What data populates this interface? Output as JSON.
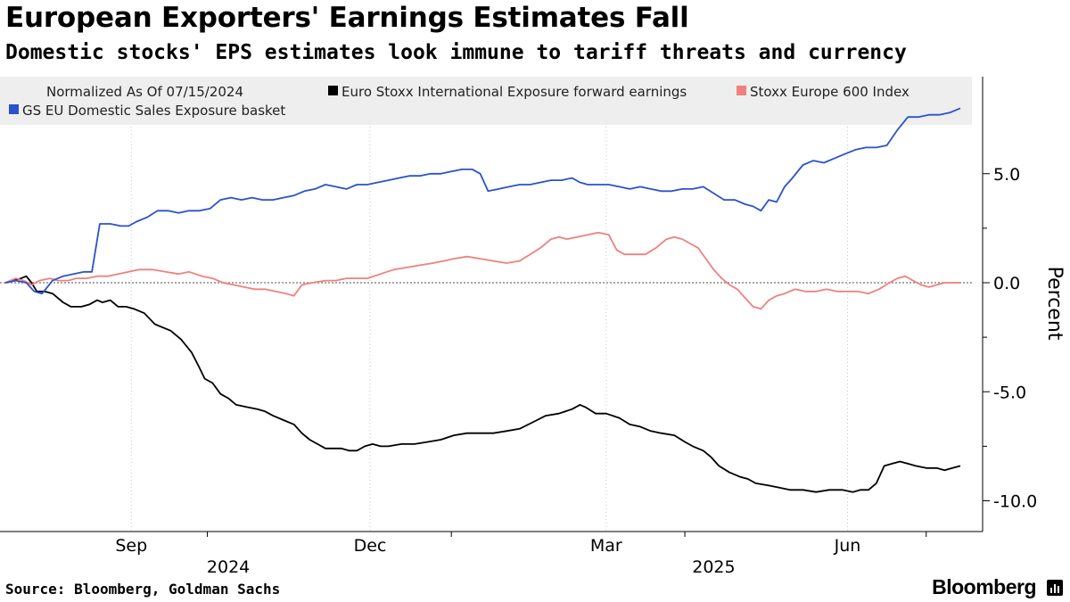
{
  "header": {
    "title": "European Exporters' Earnings Estimates Fall",
    "subtitle": "Domestic stocks' EPS estimates look immune to tariff threats and currency"
  },
  "footer": {
    "source": "Source: Bloomberg, Goldman Sachs",
    "brand": "Bloomberg"
  },
  "chart_data": {
    "type": "line",
    "title": "European Exporters' Earnings Estimates Fall",
    "subtitle": "Domestic stocks' EPS estimates look immune to tariff threats and currency",
    "note": "Normalized As Of 07/15/2024",
    "ylabel": "Percent",
    "xlabel": "",
    "ylim": [
      -11.2,
      9.5
    ],
    "xlim": [
      0,
      364
    ],
    "yticks": [
      5.0,
      0.0,
      -5.0,
      -10.0
    ],
    "ytick_labels": [
      "5.0",
      "0.0",
      "-5.0",
      "-10.0"
    ],
    "minor_yticks": [
      2.5,
      -2.5,
      -7.5
    ],
    "zero_line": true,
    "legend_position": "top",
    "x_month_ticks": [
      {
        "day": 48,
        "label": "Sep"
      },
      {
        "day": 139,
        "label": "Dec"
      },
      {
        "day": 229,
        "label": "Mar"
      },
      {
        "day": 321,
        "label": "Jun"
      }
    ],
    "x_year_labels": [
      {
        "day": 85,
        "label": "2024"
      },
      {
        "day": 270,
        "label": "2025"
      }
    ],
    "x_divider_days": [
      77,
      170,
      259,
      351
    ],
    "x_unit": "days since 07/15/2024",
    "series": [
      {
        "name": "Euro Stoxx International Exposure forward earnings",
        "color": "#000000",
        "points": [
          [
            0,
            0
          ],
          [
            3,
            0.1
          ],
          [
            6,
            0.2
          ],
          [
            8,
            0.3
          ],
          [
            10,
            0
          ],
          [
            12,
            -0.4
          ],
          [
            15,
            -0.4
          ],
          [
            18,
            -0.5
          ],
          [
            22,
            -0.9
          ],
          [
            25,
            -1.1
          ],
          [
            29,
            -1.1
          ],
          [
            32,
            -1.0
          ],
          [
            35,
            -0.8
          ],
          [
            37,
            -0.9
          ],
          [
            40,
            -0.8
          ],
          [
            43,
            -1.1
          ],
          [
            46,
            -1.1
          ],
          [
            49,
            -1.2
          ],
          [
            53,
            -1.4
          ],
          [
            57,
            -1.9
          ],
          [
            63,
            -2.2
          ],
          [
            67,
            -2.6
          ],
          [
            71,
            -3.2
          ],
          [
            74,
            -3.9
          ],
          [
            76,
            -4.4
          ],
          [
            79,
            -4.6
          ],
          [
            82,
            -5.1
          ],
          [
            85,
            -5.3
          ],
          [
            88,
            -5.6
          ],
          [
            92,
            -5.7
          ],
          [
            96,
            -5.8
          ],
          [
            99,
            -5.9
          ],
          [
            102,
            -6.1
          ],
          [
            106,
            -6.3
          ],
          [
            110,
            -6.5
          ],
          [
            113,
            -6.9
          ],
          [
            116,
            -7.2
          ],
          [
            119,
            -7.4
          ],
          [
            122,
            -7.6
          ],
          [
            125,
            -7.6
          ],
          [
            128,
            -7.6
          ],
          [
            131,
            -7.7
          ],
          [
            134,
            -7.7
          ],
          [
            137,
            -7.5
          ],
          [
            140,
            -7.4
          ],
          [
            143,
            -7.5
          ],
          [
            146,
            -7.5
          ],
          [
            151,
            -7.4
          ],
          [
            156,
            -7.4
          ],
          [
            161,
            -7.3
          ],
          [
            166,
            -7.2
          ],
          [
            171,
            -7.0
          ],
          [
            176,
            -6.9
          ],
          [
            181,
            -6.9
          ],
          [
            186,
            -6.9
          ],
          [
            191,
            -6.8
          ],
          [
            196,
            -6.7
          ],
          [
            201,
            -6.4
          ],
          [
            206,
            -6.1
          ],
          [
            211,
            -6.0
          ],
          [
            216,
            -5.8
          ],
          [
            219,
            -5.6
          ],
          [
            221,
            -5.7
          ],
          [
            225,
            -6.0
          ],
          [
            229,
            -6.0
          ],
          [
            234,
            -6.2
          ],
          [
            238,
            -6.5
          ],
          [
            242,
            -6.6
          ],
          [
            246,
            -6.8
          ],
          [
            250,
            -6.9
          ],
          [
            255,
            -7.0
          ],
          [
            259,
            -7.3
          ],
          [
            262,
            -7.5
          ],
          [
            266,
            -7.7
          ],
          [
            269,
            -8.0
          ],
          [
            272,
            -8.4
          ],
          [
            276,
            -8.7
          ],
          [
            280,
            -8.9
          ],
          [
            283,
            -9.0
          ],
          [
            286,
            -9.2
          ],
          [
            291,
            -9.3
          ],
          [
            295,
            -9.4
          ],
          [
            299,
            -9.5
          ],
          [
            304,
            -9.5
          ],
          [
            309,
            -9.6
          ],
          [
            314,
            -9.5
          ],
          [
            319,
            -9.5
          ],
          [
            323,
            -9.6
          ],
          [
            326,
            -9.5
          ],
          [
            329,
            -9.5
          ],
          [
            332,
            -9.2
          ],
          [
            335,
            -8.4
          ],
          [
            338,
            -8.3
          ],
          [
            341,
            -8.2
          ],
          [
            344,
            -8.3
          ],
          [
            347,
            -8.4
          ],
          [
            351,
            -8.5
          ],
          [
            355,
            -8.5
          ],
          [
            358,
            -8.6
          ],
          [
            361,
            -8.5
          ],
          [
            364,
            -8.4
          ]
        ]
      },
      {
        "name": "Stoxx Europe 600 Index",
        "color": "#F08080",
        "points": [
          [
            0,
            0
          ],
          [
            4,
            0.2
          ],
          [
            7,
            0.1
          ],
          [
            10,
            -0.1
          ],
          [
            13,
            0.1
          ],
          [
            17,
            0.2
          ],
          [
            20,
            0.1
          ],
          [
            24,
            0.1
          ],
          [
            27,
            0.2
          ],
          [
            31,
            0.2
          ],
          [
            35,
            0.3
          ],
          [
            39,
            0.3
          ],
          [
            43,
            0.4
          ],
          [
            47,
            0.5
          ],
          [
            51,
            0.6
          ],
          [
            56,
            0.6
          ],
          [
            61,
            0.5
          ],
          [
            66,
            0.4
          ],
          [
            70,
            0.5
          ],
          [
            75,
            0.3
          ],
          [
            79,
            0.2
          ],
          [
            83,
            0.0
          ],
          [
            87,
            -0.1
          ],
          [
            91,
            -0.2
          ],
          [
            95,
            -0.3
          ],
          [
            99,
            -0.3
          ],
          [
            103,
            -0.4
          ],
          [
            107,
            -0.5
          ],
          [
            110,
            -0.6
          ],
          [
            113,
            -0.1
          ],
          [
            117,
            0.0
          ],
          [
            122,
            0.1
          ],
          [
            126,
            0.1
          ],
          [
            130,
            0.2
          ],
          [
            134,
            0.2
          ],
          [
            138,
            0.2
          ],
          [
            143,
            0.4
          ],
          [
            148,
            0.6
          ],
          [
            153,
            0.7
          ],
          [
            158,
            0.8
          ],
          [
            163,
            0.9
          ],
          [
            167,
            1.0
          ],
          [
            171,
            1.1
          ],
          [
            176,
            1.2
          ],
          [
            181,
            1.1
          ],
          [
            186,
            1.0
          ],
          [
            191,
            0.9
          ],
          [
            196,
            1.0
          ],
          [
            200,
            1.3
          ],
          [
            204,
            1.6
          ],
          [
            208,
            2.0
          ],
          [
            211,
            2.1
          ],
          [
            214,
            2.0
          ],
          [
            218,
            2.1
          ],
          [
            222,
            2.2
          ],
          [
            226,
            2.3
          ],
          [
            230,
            2.2
          ],
          [
            233,
            1.5
          ],
          [
            236,
            1.3
          ],
          [
            240,
            1.3
          ],
          [
            244,
            1.3
          ],
          [
            248,
            1.6
          ],
          [
            252,
            2.0
          ],
          [
            255,
            2.1
          ],
          [
            258,
            2.0
          ],
          [
            261,
            1.8
          ],
          [
            264,
            1.6
          ],
          [
            267,
            1.1
          ],
          [
            270,
            0.6
          ],
          [
            273,
            0.2
          ],
          [
            276,
            -0.1
          ],
          [
            279,
            -0.3
          ],
          [
            282,
            -0.7
          ],
          [
            285,
            -1.1
          ],
          [
            288,
            -1.2
          ],
          [
            291,
            -0.8
          ],
          [
            294,
            -0.6
          ],
          [
            297,
            -0.5
          ],
          [
            301,
            -0.3
          ],
          [
            305,
            -0.4
          ],
          [
            309,
            -0.4
          ],
          [
            313,
            -0.3
          ],
          [
            317,
            -0.4
          ],
          [
            321,
            -0.4
          ],
          [
            325,
            -0.4
          ],
          [
            329,
            -0.5
          ],
          [
            333,
            -0.3
          ],
          [
            337,
            0.0
          ],
          [
            340,
            0.2
          ],
          [
            343,
            0.3
          ],
          [
            346,
            0.1
          ],
          [
            349,
            -0.1
          ],
          [
            352,
            -0.2
          ],
          [
            355,
            -0.1
          ],
          [
            358,
            0.0
          ],
          [
            361,
            0.0
          ],
          [
            364,
            0.0
          ]
        ]
      },
      {
        "name": "GS EU Domestic Sales Exposure basket",
        "color": "#2A52CC",
        "points": [
          [
            0,
            0
          ],
          [
            4,
            0.1
          ],
          [
            8,
            0
          ],
          [
            11,
            -0.4
          ],
          [
            14,
            -0.5
          ],
          [
            18,
            0.1
          ],
          [
            22,
            0.3
          ],
          [
            26,
            0.4
          ],
          [
            30,
            0.5
          ],
          [
            33,
            0.5
          ],
          [
            36,
            2.7
          ],
          [
            40,
            2.7
          ],
          [
            44,
            2.6
          ],
          [
            47,
            2.6
          ],
          [
            50,
            2.8
          ],
          [
            54,
            3.0
          ],
          [
            58,
            3.3
          ],
          [
            62,
            3.3
          ],
          [
            66,
            3.2
          ],
          [
            70,
            3.3
          ],
          [
            74,
            3.3
          ],
          [
            78,
            3.4
          ],
          [
            82,
            3.8
          ],
          [
            86,
            3.9
          ],
          [
            90,
            3.8
          ],
          [
            94,
            3.9
          ],
          [
            98,
            3.8
          ],
          [
            102,
            3.8
          ],
          [
            106,
            3.9
          ],
          [
            110,
            4.0
          ],
          [
            114,
            4.2
          ],
          [
            118,
            4.3
          ],
          [
            122,
            4.5
          ],
          [
            126,
            4.4
          ],
          [
            130,
            4.3
          ],
          [
            134,
            4.5
          ],
          [
            138,
            4.5
          ],
          [
            142,
            4.6
          ],
          [
            146,
            4.7
          ],
          [
            150,
            4.8
          ],
          [
            154,
            4.9
          ],
          [
            158,
            4.9
          ],
          [
            162,
            5.0
          ],
          [
            166,
            5.0
          ],
          [
            170,
            5.1
          ],
          [
            174,
            5.2
          ],
          [
            178,
            5.2
          ],
          [
            181,
            5.0
          ],
          [
            184,
            4.2
          ],
          [
            188,
            4.3
          ],
          [
            192,
            4.4
          ],
          [
            196,
            4.5
          ],
          [
            200,
            4.5
          ],
          [
            204,
            4.6
          ],
          [
            208,
            4.7
          ],
          [
            212,
            4.7
          ],
          [
            216,
            4.8
          ],
          [
            219,
            4.6
          ],
          [
            222,
            4.5
          ],
          [
            226,
            4.5
          ],
          [
            230,
            4.5
          ],
          [
            234,
            4.4
          ],
          [
            238,
            4.3
          ],
          [
            242,
            4.4
          ],
          [
            246,
            4.3
          ],
          [
            250,
            4.2
          ],
          [
            254,
            4.2
          ],
          [
            258,
            4.3
          ],
          [
            262,
            4.3
          ],
          [
            266,
            4.4
          ],
          [
            270,
            4.1
          ],
          [
            274,
            3.8
          ],
          [
            278,
            3.8
          ],
          [
            282,
            3.6
          ],
          [
            285,
            3.5
          ],
          [
            288,
            3.3
          ],
          [
            291,
            3.8
          ],
          [
            294,
            3.7
          ],
          [
            297,
            4.4
          ],
          [
            300,
            4.8
          ],
          [
            304,
            5.4
          ],
          [
            308,
            5.6
          ],
          [
            312,
            5.5
          ],
          [
            316,
            5.7
          ],
          [
            320,
            5.9
          ],
          [
            324,
            6.1
          ],
          [
            328,
            6.2
          ],
          [
            332,
            6.2
          ],
          [
            336,
            6.3
          ],
          [
            340,
            7.0
          ],
          [
            344,
            7.6
          ],
          [
            348,
            7.6
          ],
          [
            352,
            7.7
          ],
          [
            356,
            7.7
          ],
          [
            360,
            7.8
          ],
          [
            364,
            8.0
          ]
        ]
      }
    ]
  }
}
